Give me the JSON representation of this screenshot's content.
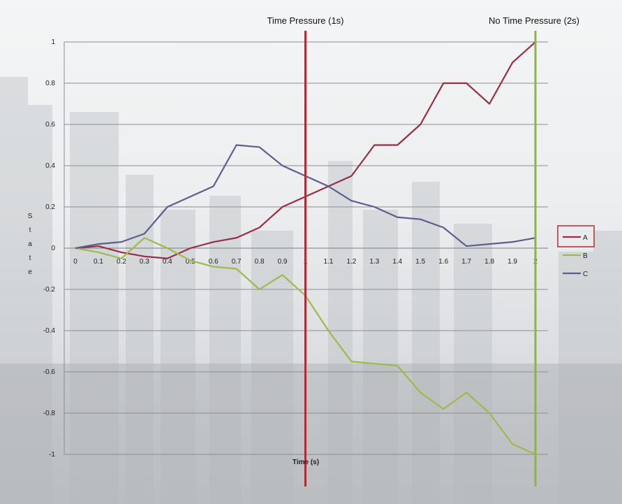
{
  "chart_data": {
    "type": "line",
    "title": "",
    "xlabel": "Time (s)",
    "ylabel": "State",
    "x": [
      0,
      0.1,
      0.2,
      0.3,
      0.4,
      0.5,
      0.6,
      0.7,
      0.8,
      0.9,
      1,
      1.1,
      1.2,
      1.3,
      1.4,
      1.5,
      1.6,
      1.7,
      1.8,
      1.9,
      2
    ],
    "x_tick_labels": [
      "0",
      "0.1",
      "0.2",
      "0.3",
      "0.4",
      "0.5",
      "0.6",
      "0.7",
      "0.8",
      "0.9",
      "1",
      "1.1",
      "1.2",
      "1.3",
      "1.4",
      "1.5",
      "1.6",
      "1.7",
      "1.8",
      "1.9",
      "2"
    ],
    "y_tick_labels": [
      "1",
      "0.8",
      "0.6",
      "0.4",
      "0.2",
      "0",
      "-0.2",
      "-0.4",
      "-0.6",
      "-0.8",
      "-1"
    ],
    "ylim": [
      -1,
      1
    ],
    "xlim": [
      0,
      2
    ],
    "grid": true,
    "legend_position": "right",
    "series": [
      {
        "name": "A",
        "color": "#9b2d45",
        "values": [
          0,
          0.01,
          -0.02,
          -0.04,
          -0.05,
          0,
          0.03,
          0.05,
          0.1,
          0.2,
          0.25,
          0.3,
          0.35,
          0.5,
          0.5,
          0.6,
          0.8,
          0.8,
          0.7,
          0.9,
          1.0
        ]
      },
      {
        "name": "B",
        "color": "#9cbb4c",
        "values": [
          0,
          -0.02,
          -0.05,
          0.05,
          0.0,
          -0.06,
          -0.09,
          -0.1,
          -0.2,
          -0.13,
          -0.23,
          -0.4,
          -0.55,
          -0.56,
          -0.57,
          -0.7,
          -0.78,
          -0.7,
          -0.8,
          -0.95,
          -1.0
        ]
      },
      {
        "name": "C",
        "color": "#5b5e8e",
        "values": [
          0,
          0.02,
          0.03,
          0.07,
          0.2,
          0.25,
          0.3,
          0.5,
          0.49,
          0.4,
          0.35,
          0.3,
          0.23,
          0.2,
          0.15,
          0.14,
          0.1,
          0.01,
          0.02,
          0.03,
          0.05
        ]
      }
    ],
    "vertical_markers": [
      {
        "x": 1,
        "label": "Time Pressure (1s)",
        "color": "#b22a35"
      },
      {
        "x": 2,
        "label": "No Time Pressure (2s)",
        "color": "#8fb244"
      }
    ]
  }
}
